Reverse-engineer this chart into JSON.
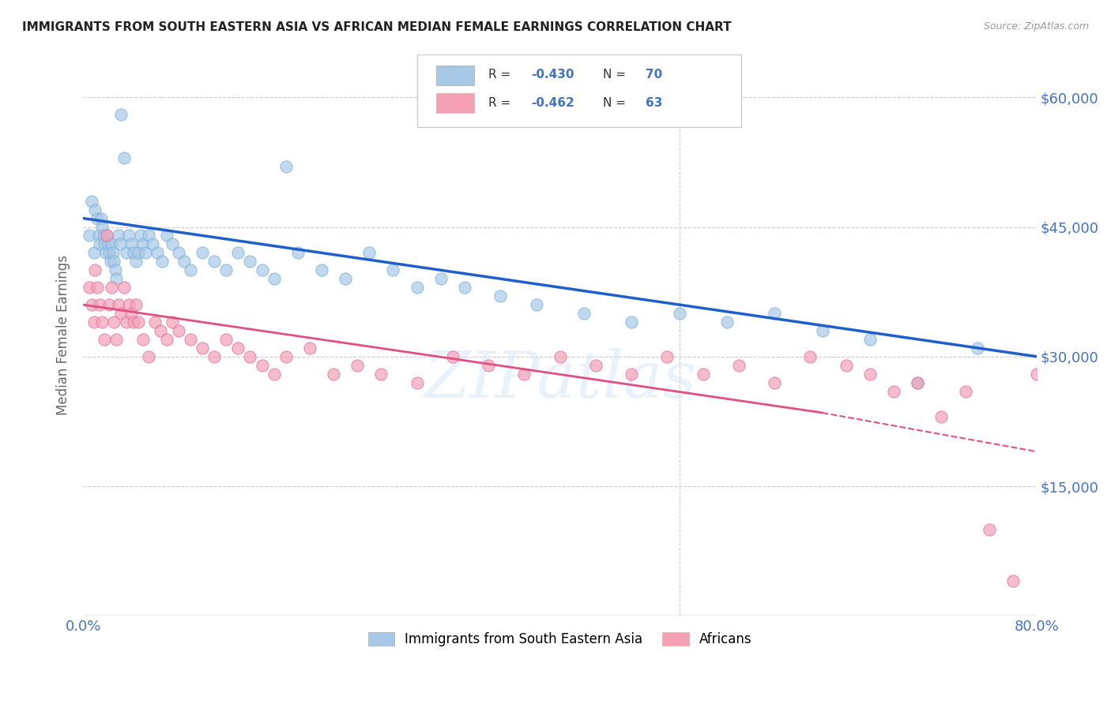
{
  "title": "IMMIGRANTS FROM SOUTH EASTERN ASIA VS AFRICAN MEDIAN FEMALE EARNINGS CORRELATION CHART",
  "source": "Source: ZipAtlas.com",
  "ylabel": "Median Female Earnings",
  "xlim": [
    0.0,
    0.8
  ],
  "ylim": [
    0,
    65000
  ],
  "yticks": [
    0,
    15000,
    30000,
    45000,
    60000
  ],
  "ytick_labels": [
    "",
    "$15,000",
    "$30,000",
    "$45,000",
    "$60,000"
  ],
  "xticks": [
    0.0,
    0.2,
    0.4,
    0.6,
    0.8
  ],
  "xtick_labels": [
    "0.0%",
    "",
    "",
    "",
    "80.0%"
  ],
  "blue_color": "#a8c8e8",
  "blue_line_color": "#1f5fcc",
  "pink_color": "#f4a0b5",
  "pink_line_color": "#e05080",
  "background_color": "#ffffff",
  "grid_color": "#cccccc",
  "title_color": "#222222",
  "axis_label_color": "#4472c4",
  "watermark": "ZIPatlas",
  "blue_scatter_x": [
    0.005,
    0.007,
    0.009,
    0.01,
    0.012,
    0.013,
    0.014,
    0.015,
    0.016,
    0.017,
    0.018,
    0.019,
    0.02,
    0.021,
    0.022,
    0.023,
    0.024,
    0.025,
    0.026,
    0.027,
    0.028,
    0.03,
    0.031,
    0.032,
    0.034,
    0.036,
    0.038,
    0.04,
    0.042,
    0.044,
    0.046,
    0.048,
    0.05,
    0.052,
    0.055,
    0.058,
    0.062,
    0.066,
    0.07,
    0.075,
    0.08,
    0.085,
    0.09,
    0.1,
    0.11,
    0.12,
    0.13,
    0.14,
    0.15,
    0.16,
    0.17,
    0.18,
    0.2,
    0.22,
    0.24,
    0.26,
    0.28,
    0.3,
    0.32,
    0.35,
    0.38,
    0.42,
    0.46,
    0.5,
    0.54,
    0.58,
    0.62,
    0.66,
    0.7,
    0.75
  ],
  "blue_scatter_y": [
    44000,
    48000,
    42000,
    47000,
    46000,
    44000,
    43000,
    46000,
    45000,
    44000,
    43000,
    42000,
    44000,
    43000,
    42000,
    41000,
    43000,
    42000,
    41000,
    40000,
    39000,
    44000,
    43000,
    58000,
    53000,
    42000,
    44000,
    43000,
    42000,
    41000,
    42000,
    44000,
    43000,
    42000,
    44000,
    43000,
    42000,
    41000,
    44000,
    43000,
    42000,
    41000,
    40000,
    42000,
    41000,
    40000,
    42000,
    41000,
    40000,
    39000,
    52000,
    42000,
    40000,
    39000,
    42000,
    40000,
    38000,
    39000,
    38000,
    37000,
    36000,
    35000,
    34000,
    35000,
    34000,
    35000,
    33000,
    32000,
    27000,
    31000
  ],
  "pink_scatter_x": [
    0.005,
    0.007,
    0.009,
    0.01,
    0.012,
    0.014,
    0.016,
    0.018,
    0.02,
    0.022,
    0.024,
    0.026,
    0.028,
    0.03,
    0.032,
    0.034,
    0.036,
    0.038,
    0.04,
    0.042,
    0.044,
    0.046,
    0.05,
    0.055,
    0.06,
    0.065,
    0.07,
    0.075,
    0.08,
    0.09,
    0.1,
    0.11,
    0.12,
    0.13,
    0.14,
    0.15,
    0.16,
    0.17,
    0.19,
    0.21,
    0.23,
    0.25,
    0.28,
    0.31,
    0.34,
    0.37,
    0.4,
    0.43,
    0.46,
    0.49,
    0.52,
    0.55,
    0.58,
    0.61,
    0.64,
    0.66,
    0.68,
    0.7,
    0.72,
    0.74,
    0.76,
    0.78,
    0.8
  ],
  "pink_scatter_y": [
    38000,
    36000,
    34000,
    40000,
    38000,
    36000,
    34000,
    32000,
    44000,
    36000,
    38000,
    34000,
    32000,
    36000,
    35000,
    38000,
    34000,
    36000,
    35000,
    34000,
    36000,
    34000,
    32000,
    30000,
    34000,
    33000,
    32000,
    34000,
    33000,
    32000,
    31000,
    30000,
    32000,
    31000,
    30000,
    29000,
    28000,
    30000,
    31000,
    28000,
    29000,
    28000,
    27000,
    30000,
    29000,
    28000,
    30000,
    29000,
    28000,
    30000,
    28000,
    29000,
    27000,
    30000,
    29000,
    28000,
    26000,
    27000,
    23000,
    26000,
    10000,
    4000,
    28000
  ],
  "blue_line_x0": 0.0,
  "blue_line_y0": 46000,
  "blue_line_x1": 0.8,
  "blue_line_y1": 30000,
  "pink_line_solid_x0": 0.0,
  "pink_line_solid_y0": 36000,
  "pink_line_solid_x1": 0.62,
  "pink_line_solid_y1": 23500,
  "pink_line_dash_x0": 0.62,
  "pink_line_dash_y0": 23500,
  "pink_line_dash_x1": 0.8,
  "pink_line_dash_y1": 19000,
  "legend_label_blue": "Immigrants from South Eastern Asia",
  "legend_label_pink": "Africans"
}
